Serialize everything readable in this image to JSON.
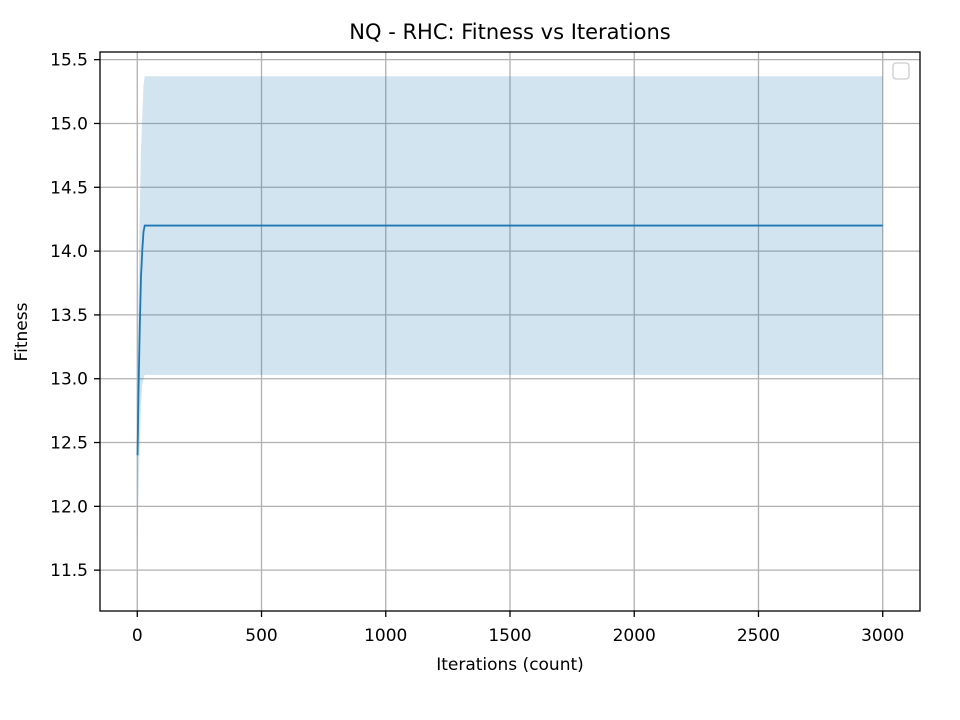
{
  "chart_data": {
    "type": "line",
    "title": "NQ - RHC: Fitness vs Iterations",
    "xlabel": "Iterations (count)",
    "ylabel": "Fitness",
    "xlim": [
      -150,
      3150
    ],
    "ylim": [
      11.18,
      15.56
    ],
    "xticks": [
      0,
      500,
      1000,
      1500,
      2000,
      2500,
      3000
    ],
    "yticks": [
      11.5,
      12.0,
      12.5,
      13.0,
      13.5,
      14.0,
      14.5,
      15.0,
      15.5
    ],
    "grid": true,
    "legend": "top-right, empty",
    "series": [
      {
        "x": [
          1,
          5,
          10,
          15,
          20,
          25,
          30,
          3000
        ],
        "mean": [
          12.4,
          12.9,
          13.4,
          13.8,
          14.0,
          14.15,
          14.2,
          14.2
        ],
        "lower": [
          11.6,
          12.1,
          12.5,
          12.8,
          12.95,
          13.0,
          13.03,
          13.03
        ],
        "upper": [
          13.2,
          13.7,
          14.3,
          14.8,
          15.05,
          15.3,
          15.37,
          15.37
        ],
        "color": "#1f77b4",
        "band_color": "#1f77b4"
      }
    ]
  }
}
